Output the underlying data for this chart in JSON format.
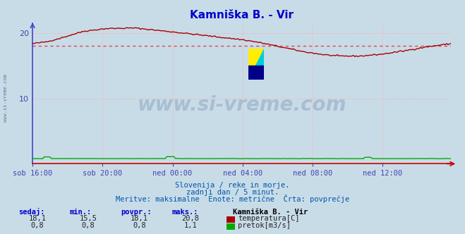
{
  "title": "Kamniška B. - Vir",
  "title_color": "#0000cc",
  "bg_color": "#c8dce8",
  "plot_bg_color": "#c8dce8",
  "grid_color": "#ffaaaa",
  "grid_linestyle": ":",
  "xlim": [
    0,
    287
  ],
  "ylim": [
    0,
    21.5
  ],
  "yticks": [
    10,
    20
  ],
  "xtick_labels": [
    "sob 16:00",
    "sob 20:00",
    "ned 00:00",
    "ned 04:00",
    "ned 08:00",
    "ned 12:00"
  ],
  "xtick_positions": [
    0,
    48,
    96,
    144,
    192,
    240
  ],
  "temp_color": "#aa0000",
  "flow_color": "#00aa00",
  "avg_line_color": "#dd4444",
  "avg_line_style": ":",
  "avg_value": 18.1,
  "watermark": "www.si-vreme.com",
  "watermark_color": "#1a3a6a",
  "watermark_alpha": 0.18,
  "watermark_fontsize": 20,
  "subtitle1": "Slovenija / reke in morje.",
  "subtitle2": "zadnji dan / 5 minut.",
  "subtitle3": "Meritve: maksimalne  Enote: metrične  Črta: povprečje",
  "subtitle_color": "#0055aa",
  "footer_label_color": "#0000cc",
  "footer_headers": [
    "sedaj:",
    "min.:",
    "povpr.:",
    "maks.:"
  ],
  "footer_station": "Kamniška B. - Vir",
  "footer_temp_vals": [
    "18,1",
    "15,5",
    "18,1",
    "20,8"
  ],
  "footer_flow_vals": [
    "0,8",
    "0,8",
    "0,8",
    "1,1"
  ],
  "footer_temp_label": "temperatura[C]",
  "footer_flow_label": "pretok[m3/s]",
  "axis_left_color": "#4444cc",
  "axis_bottom_color": "#cc0000",
  "tick_color": "#4444aa",
  "left_label": "www.si-vreme.com",
  "figsize": [
    6.59,
    3.32
  ],
  "dpi": 100,
  "logo_colors": {
    "yellow": "#ffee00",
    "cyan": "#00ccdd",
    "blue": "#000088"
  }
}
